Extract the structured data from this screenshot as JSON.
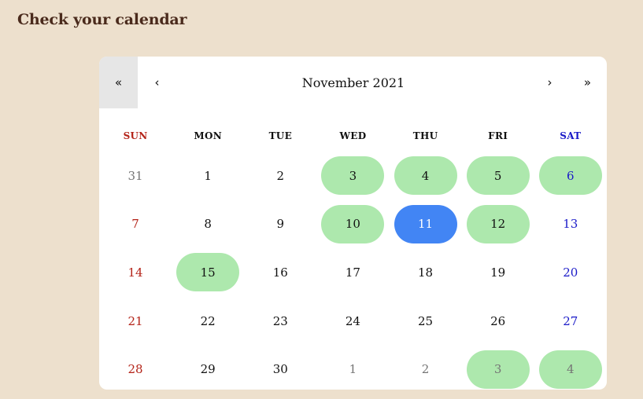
{
  "page": {
    "title": "Check your calendar"
  },
  "calendar": {
    "month_label": "November 2021",
    "nav": {
      "prev_year": "«",
      "prev_month": "‹",
      "next_month": "›",
      "next_year": "»"
    },
    "weekdays": [
      "SUN",
      "MON",
      "TUE",
      "WED",
      "THU",
      "FRI",
      "SAT"
    ],
    "colors": {
      "highlight": "#ade8ad",
      "selected": "#4285f4",
      "sunday": "#b42318",
      "saturday": "#1a1ac8",
      "other_month": "#757575"
    },
    "days": [
      {
        "label": "31",
        "other": true,
        "highlight": false,
        "selected": false
      },
      {
        "label": "1",
        "other": false,
        "highlight": false,
        "selected": false
      },
      {
        "label": "2",
        "other": false,
        "highlight": false,
        "selected": false
      },
      {
        "label": "3",
        "other": false,
        "highlight": true,
        "selected": false
      },
      {
        "label": "4",
        "other": false,
        "highlight": true,
        "selected": false
      },
      {
        "label": "5",
        "other": false,
        "highlight": true,
        "selected": false
      },
      {
        "label": "6",
        "other": false,
        "highlight": true,
        "selected": false
      },
      {
        "label": "7",
        "other": false,
        "highlight": false,
        "selected": false
      },
      {
        "label": "8",
        "other": false,
        "highlight": false,
        "selected": false
      },
      {
        "label": "9",
        "other": false,
        "highlight": false,
        "selected": false
      },
      {
        "label": "10",
        "other": false,
        "highlight": true,
        "selected": false
      },
      {
        "label": "11",
        "other": false,
        "highlight": false,
        "selected": true
      },
      {
        "label": "12",
        "other": false,
        "highlight": true,
        "selected": false
      },
      {
        "label": "13",
        "other": false,
        "highlight": false,
        "selected": false
      },
      {
        "label": "14",
        "other": false,
        "highlight": false,
        "selected": false
      },
      {
        "label": "15",
        "other": false,
        "highlight": true,
        "selected": false
      },
      {
        "label": "16",
        "other": false,
        "highlight": false,
        "selected": false
      },
      {
        "label": "17",
        "other": false,
        "highlight": false,
        "selected": false
      },
      {
        "label": "18",
        "other": false,
        "highlight": false,
        "selected": false
      },
      {
        "label": "19",
        "other": false,
        "highlight": false,
        "selected": false
      },
      {
        "label": "20",
        "other": false,
        "highlight": false,
        "selected": false
      },
      {
        "label": "21",
        "other": false,
        "highlight": false,
        "selected": false
      },
      {
        "label": "22",
        "other": false,
        "highlight": false,
        "selected": false
      },
      {
        "label": "23",
        "other": false,
        "highlight": false,
        "selected": false
      },
      {
        "label": "24",
        "other": false,
        "highlight": false,
        "selected": false
      },
      {
        "label": "25",
        "other": false,
        "highlight": false,
        "selected": false
      },
      {
        "label": "26",
        "other": false,
        "highlight": false,
        "selected": false
      },
      {
        "label": "27",
        "other": false,
        "highlight": false,
        "selected": false
      },
      {
        "label": "28",
        "other": false,
        "highlight": false,
        "selected": false
      },
      {
        "label": "29",
        "other": false,
        "highlight": false,
        "selected": false
      },
      {
        "label": "30",
        "other": false,
        "highlight": false,
        "selected": false
      },
      {
        "label": "1",
        "other": true,
        "highlight": false,
        "selected": false
      },
      {
        "label": "2",
        "other": true,
        "highlight": false,
        "selected": false
      },
      {
        "label": "3",
        "other": true,
        "highlight": true,
        "selected": false
      },
      {
        "label": "4",
        "other": true,
        "highlight": true,
        "selected": false
      }
    ]
  }
}
